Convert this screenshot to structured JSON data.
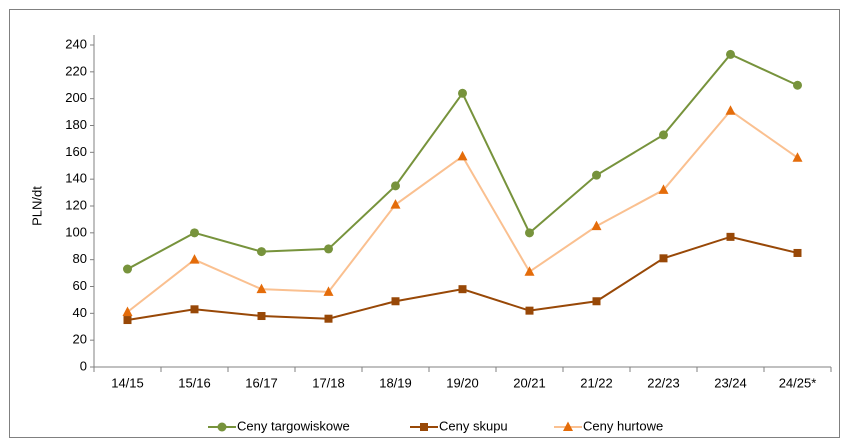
{
  "chart_data": {
    "type": "line",
    "ylabel": "PLN/dt",
    "categories": [
      "14/15",
      "15/16",
      "16/17",
      "17/18",
      "18/19",
      "19/20",
      "20/21",
      "21/22",
      "22/23",
      "23/24",
      "24/25*"
    ],
    "series": [
      {
        "name": "Ceny targowiskowe",
        "color": "#77933c",
        "marker_color": "#77933c",
        "marker": "circle",
        "values": [
          73,
          100,
          86,
          88,
          135,
          204,
          100,
          143,
          173,
          233,
          210
        ]
      },
      {
        "name": "Ceny skupu",
        "color": "#984807",
        "marker_color": "#984807",
        "marker": "square",
        "values": [
          35,
          43,
          38,
          36,
          49,
          58,
          42,
          49,
          81,
          97,
          85
        ]
      },
      {
        "name": "Ceny hurtowe",
        "color": "#fac090",
        "marker_color": "#e46c0a",
        "marker": "triangle",
        "values": [
          41,
          80,
          58,
          56,
          121,
          157,
          71,
          105,
          132,
          191,
          156
        ]
      }
    ],
    "ylim": [
      0,
      240
    ],
    "yticks": [
      0,
      20,
      40,
      60,
      80,
      100,
      120,
      140,
      160,
      180,
      200,
      220,
      240
    ],
    "legend": "bottom"
  }
}
